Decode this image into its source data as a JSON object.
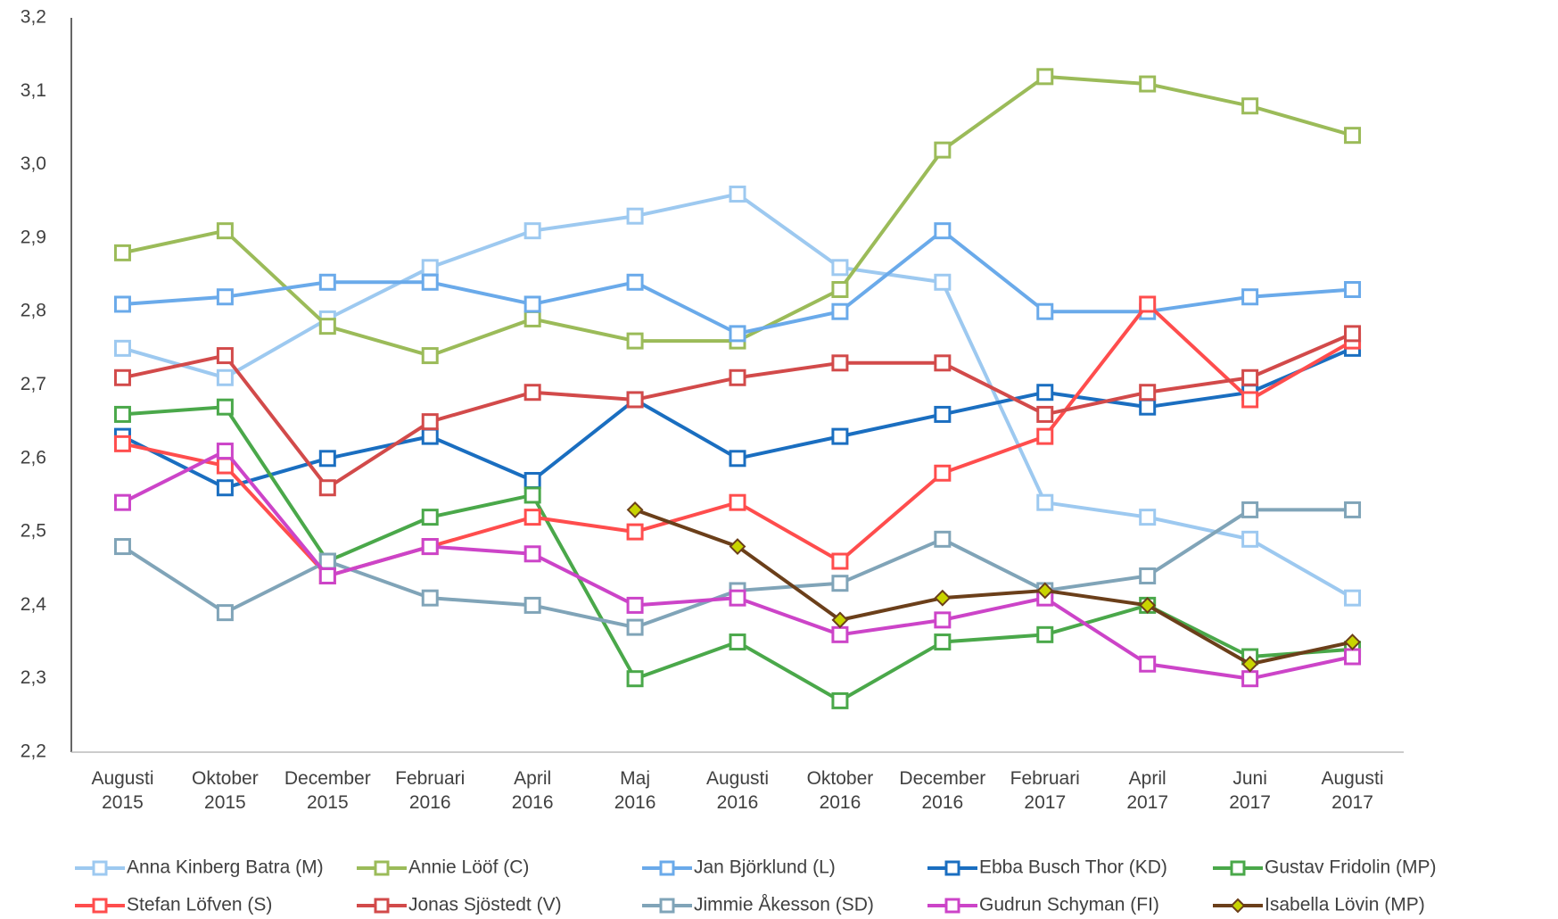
{
  "chart_data": {
    "type": "line",
    "categories": [
      "Augusti 2015",
      "Oktober 2015",
      "December 2015",
      "Februari 2016",
      "April 2016",
      "Maj 2016",
      "Augusti 2016",
      "Oktober 2016",
      "December 2016",
      "Februari 2017",
      "April 2017",
      "Juni 2017",
      "Augusti 2017"
    ],
    "ylim": [
      2.2,
      3.2
    ],
    "yticks": [
      {
        "value": 2.2,
        "label": "2,2"
      },
      {
        "value": 2.3,
        "label": "2,3"
      },
      {
        "value": 2.4,
        "label": "2,4"
      },
      {
        "value": 2.5,
        "label": "2,5"
      },
      {
        "value": 2.6,
        "label": "2,6"
      },
      {
        "value": 2.7,
        "label": "2,7"
      },
      {
        "value": 2.8,
        "label": "2,8"
      },
      {
        "value": 2.9,
        "label": "2,9"
      },
      {
        "value": 3.0,
        "label": "3,0"
      },
      {
        "value": 3.1,
        "label": "3,1"
      },
      {
        "value": 3.2,
        "label": "3,2"
      }
    ],
    "grid": false,
    "legend": "bottom",
    "series": [
      {
        "name": "Anna Kinberg Batra (M)",
        "color": "#9dc9f0",
        "marker": "square",
        "values": [
          2.75,
          2.71,
          2.79,
          2.86,
          2.91,
          2.93,
          2.96,
          2.86,
          2.84,
          2.54,
          2.52,
          2.49,
          2.41
        ]
      },
      {
        "name": "Annie Lööf (C)",
        "color": "#9bbb59",
        "marker": "square",
        "values": [
          2.88,
          2.91,
          2.78,
          2.74,
          2.79,
          2.76,
          2.76,
          2.83,
          3.02,
          3.12,
          3.11,
          3.08,
          3.04
        ]
      },
      {
        "name": "Jan Björklund (L)",
        "color": "#6aaaea",
        "marker": "square",
        "values": [
          2.81,
          2.82,
          2.84,
          2.84,
          2.81,
          2.84,
          2.77,
          2.8,
          2.91,
          2.8,
          2.8,
          2.82,
          2.83
        ]
      },
      {
        "name": "Ebba Busch Thor (KD)",
        "color": "#1a6ec0",
        "marker": "square",
        "values": [
          2.63,
          2.56,
          2.6,
          2.63,
          2.57,
          2.68,
          2.6,
          2.63,
          2.66,
          2.69,
          2.67,
          2.69,
          2.75
        ]
      },
      {
        "name": "Gustav Fridolin (MP)",
        "color": "#4aa84a",
        "marker": "square",
        "values": [
          2.66,
          2.67,
          2.46,
          2.52,
          2.55,
          2.3,
          2.35,
          2.27,
          2.35,
          2.36,
          2.4,
          2.33,
          2.34
        ]
      },
      {
        "name": "Stefan Löfven (S)",
        "color": "#ff4d4d",
        "marker": "square",
        "values": [
          2.62,
          2.59,
          2.44,
          2.48,
          2.52,
          2.5,
          2.54,
          2.46,
          2.58,
          2.63,
          2.81,
          2.68,
          2.76
        ]
      },
      {
        "name": "Jonas Sjöstedt (V)",
        "color": "#d24a4a",
        "marker": "square",
        "values": [
          2.71,
          2.74,
          2.56,
          2.65,
          2.69,
          2.68,
          2.71,
          2.73,
          2.73,
          2.66,
          2.69,
          2.71,
          2.77
        ]
      },
      {
        "name": "Jimmie Åkesson (SD)",
        "color": "#80a4b8",
        "marker": "square",
        "values": [
          2.48,
          2.39,
          2.46,
          2.41,
          2.4,
          2.37,
          2.42,
          2.43,
          2.49,
          2.42,
          2.44,
          2.53,
          2.53
        ]
      },
      {
        "name": "Gudrun Schyman (FI)",
        "color": "#cc44c8",
        "marker": "square",
        "values": [
          2.54,
          2.61,
          2.44,
          2.48,
          2.47,
          2.4,
          2.41,
          2.36,
          2.38,
          2.41,
          2.32,
          2.3,
          2.33
        ]
      },
      {
        "name": "Isabella Lövin (MP)",
        "color": "#6b3f1a",
        "marker": "diamond",
        "values": [
          null,
          null,
          null,
          null,
          null,
          2.53,
          2.48,
          2.38,
          2.41,
          2.42,
          2.4,
          2.32,
          2.35
        ]
      }
    ]
  }
}
